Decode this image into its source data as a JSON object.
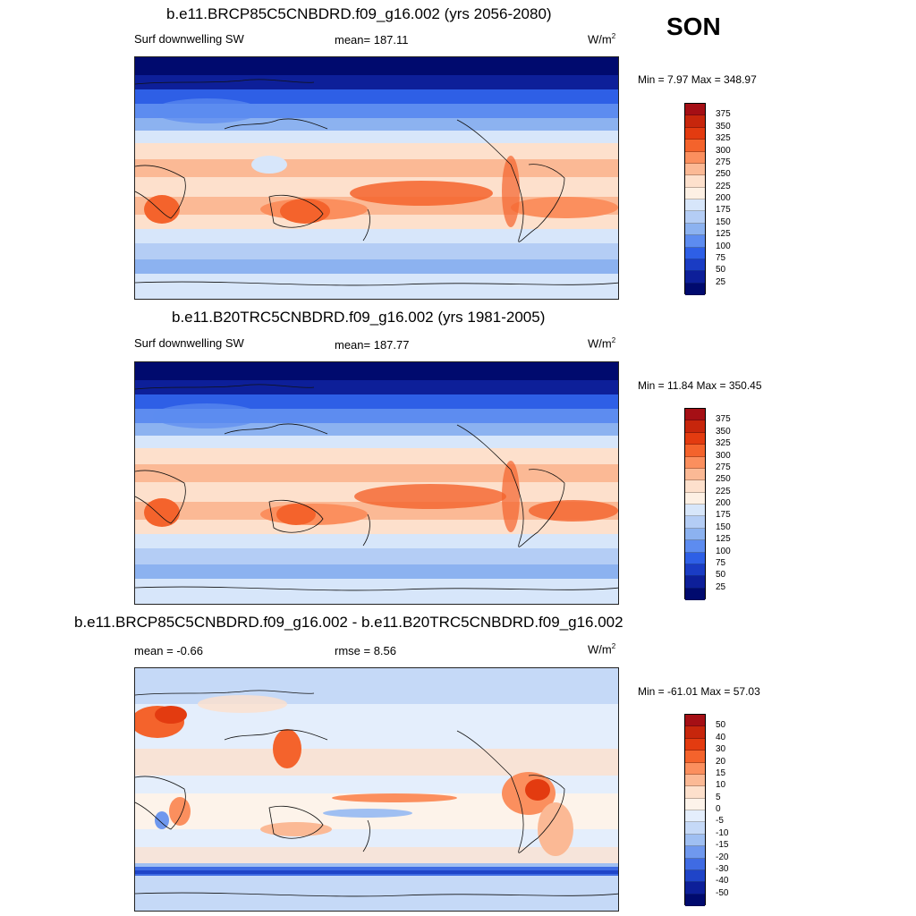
{
  "season": "SON",
  "panels": [
    {
      "title": "b.e11.BRCP85C5CNBDRD.f09_g16.002 (yrs 2056-2080)",
      "left_label": "Surf downwelling SW",
      "center_label": "mean= 187.11",
      "units": "W/m",
      "units_exp": "2",
      "minmax": "Min =   7.97 Max = 348.97",
      "colorbar_labels": [
        "375",
        "350",
        "325",
        "300",
        "275",
        "250",
        "225",
        "200",
        "175",
        "150",
        "125",
        "100",
        "75",
        "50",
        "25"
      ],
      "colorbar_colors": [
        "#a50f15",
        "#c7260c",
        "#e33b10",
        "#f4632c",
        "#fb8f5e",
        "#fbb995",
        "#fde0cc",
        "#fdf0e4",
        "#d7e6fa",
        "#b4cdf5",
        "#8cb2f0",
        "#5d8cf0",
        "#2e5fe6",
        "#1a3cc4",
        "#0d1f99",
        "#000a6e"
      ]
    },
    {
      "title": "b.e11.B20TRC5CNBDRD.f09_g16.002 (yrs 1981-2005)",
      "left_label": "Surf downwelling SW",
      "center_label": "mean= 187.77",
      "units": "W/m",
      "units_exp": "2",
      "minmax": "Min =  11.84 Max = 350.45",
      "colorbar_labels": [
        "375",
        "350",
        "325",
        "300",
        "275",
        "250",
        "225",
        "200",
        "175",
        "150",
        "125",
        "100",
        "75",
        "50",
        "25"
      ],
      "colorbar_colors": [
        "#a50f15",
        "#c7260c",
        "#e33b10",
        "#f4632c",
        "#fb8f5e",
        "#fbb995",
        "#fde0cc",
        "#fdf0e4",
        "#d7e6fa",
        "#b4cdf5",
        "#8cb2f0",
        "#5d8cf0",
        "#2e5fe6",
        "#1a3cc4",
        "#0d1f99",
        "#000a6e"
      ]
    },
    {
      "title": "b.e11.BRCP85C5CNBDRD.f09_g16.002 - b.e11.B20TRC5CNBDRD.f09_g16.002",
      "left_label": "mean =  -0.66",
      "center_label": "rmse =   8.56",
      "units": "W/m",
      "units_exp": "2",
      "minmax": "Min = -61.01 Max =  57.03",
      "colorbar_labels": [
        "50",
        "40",
        "30",
        "20",
        "15",
        "10",
        "5",
        "0",
        "-5",
        "-10",
        "-15",
        "-20",
        "-30",
        "-40",
        "-50"
      ],
      "colorbar_colors": [
        "#a50f15",
        "#c7260c",
        "#e33b10",
        "#f4632c",
        "#fb8f5e",
        "#fbb995",
        "#fde0cc",
        "#fdf3ea",
        "#e4eefc",
        "#c5d9f7",
        "#9fbff2",
        "#6f98ee",
        "#3f6be3",
        "#1f44c8",
        "#0d1f99",
        "#000a6e"
      ]
    }
  ]
}
